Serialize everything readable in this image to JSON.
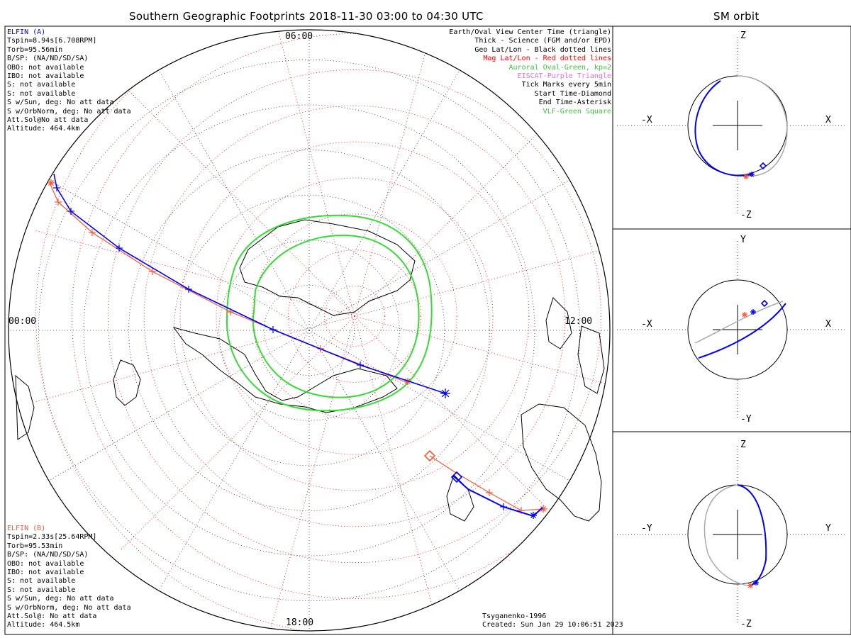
{
  "main_title": "Southern Geographic Footprints 2018-11-30 03:00 to 04:30 UTC",
  "side_title": "SM orbit",
  "mlt_labels": {
    "top": "06:00",
    "left": "00:00",
    "right": "12:00",
    "bottom": "18:00"
  },
  "elfin_a": {
    "lines": [
      "ELFIN (A)",
      "Tspin=8.94s[6.708RPM]",
      "Torb=95.56min",
      "B/SP: (NA/ND/SD/SA)",
      "OBO: not available",
      "IBO: not available",
      "S: not available",
      "S: not available",
      "S w/Sun, deg: No att data",
      "S w/OrbNorm, deg: No att data",
      "Att.Sol@No att data",
      "Altitude: 464.4km"
    ],
    "color": "#0000ff"
  },
  "elfin_b": {
    "lines": [
      "ELFIN (B)",
      "Tspin=2.33s[25.64RPM]",
      "Torb=95.53min",
      "B/SP: (NA/ND/SD/SA)",
      "OBO: not available",
      "IBO: not available",
      "S: not available",
      "S: not available",
      "S w/Sun, deg: No att data",
      "S w/OrbNorm, deg: No att data",
      "Att.Sol@: No att data",
      "Altitude: 464.5km"
    ],
    "color": "#ff5533"
  },
  "legend": [
    {
      "text": "Earth/Oval View Center Time (triangle)",
      "color": "#000000"
    },
    {
      "text": "Thick - Science (FGM and/or EPD)",
      "color": "#000000"
    },
    {
      "text": "Geo Lat/Lon - Black dotted lines",
      "color": "#000000"
    },
    {
      "text": "Mag Lat/Lon - Red dotted lines",
      "color": "#ff0000"
    },
    {
      "text": "Auroral Oval-Green, kp=2",
      "color": "#33cc33"
    },
    {
      "text": "EISCAT-Purple Triangle",
      "color": "#ee66ee"
    },
    {
      "text": "Tick Marks every 5min",
      "color": "#000000"
    },
    {
      "text": "Start Time-Diamond",
      "color": "#000000"
    },
    {
      "text": "End Time-Asterisk",
      "color": "#000000"
    },
    {
      "text": "VLF-Green Square",
      "color": "#33cc33"
    }
  ],
  "footer": {
    "model": "Tsyganenko-1996",
    "created": "Created: Sun Jan 29 10:06:51 2023"
  },
  "orbit_panels": [
    {
      "top": "Z",
      "bottom": "-Z",
      "left": "-X",
      "right": "X"
    },
    {
      "top": "Y",
      "bottom": "-Y",
      "left": "-X",
      "right": "X"
    },
    {
      "top": "Z",
      "bottom": "-Z",
      "left": "-Y",
      "right": "Y"
    }
  ],
  "chart_data": {
    "type": "scatter",
    "projection": "south polar stereographic",
    "series": [
      {
        "name": "ELFIN (A)",
        "color": "#0000ff"
      },
      {
        "name": "ELFIN (B)",
        "color": "#ff5533"
      }
    ],
    "auroral_oval_kp": 2,
    "tick_interval_min": 5,
    "grid": true
  }
}
